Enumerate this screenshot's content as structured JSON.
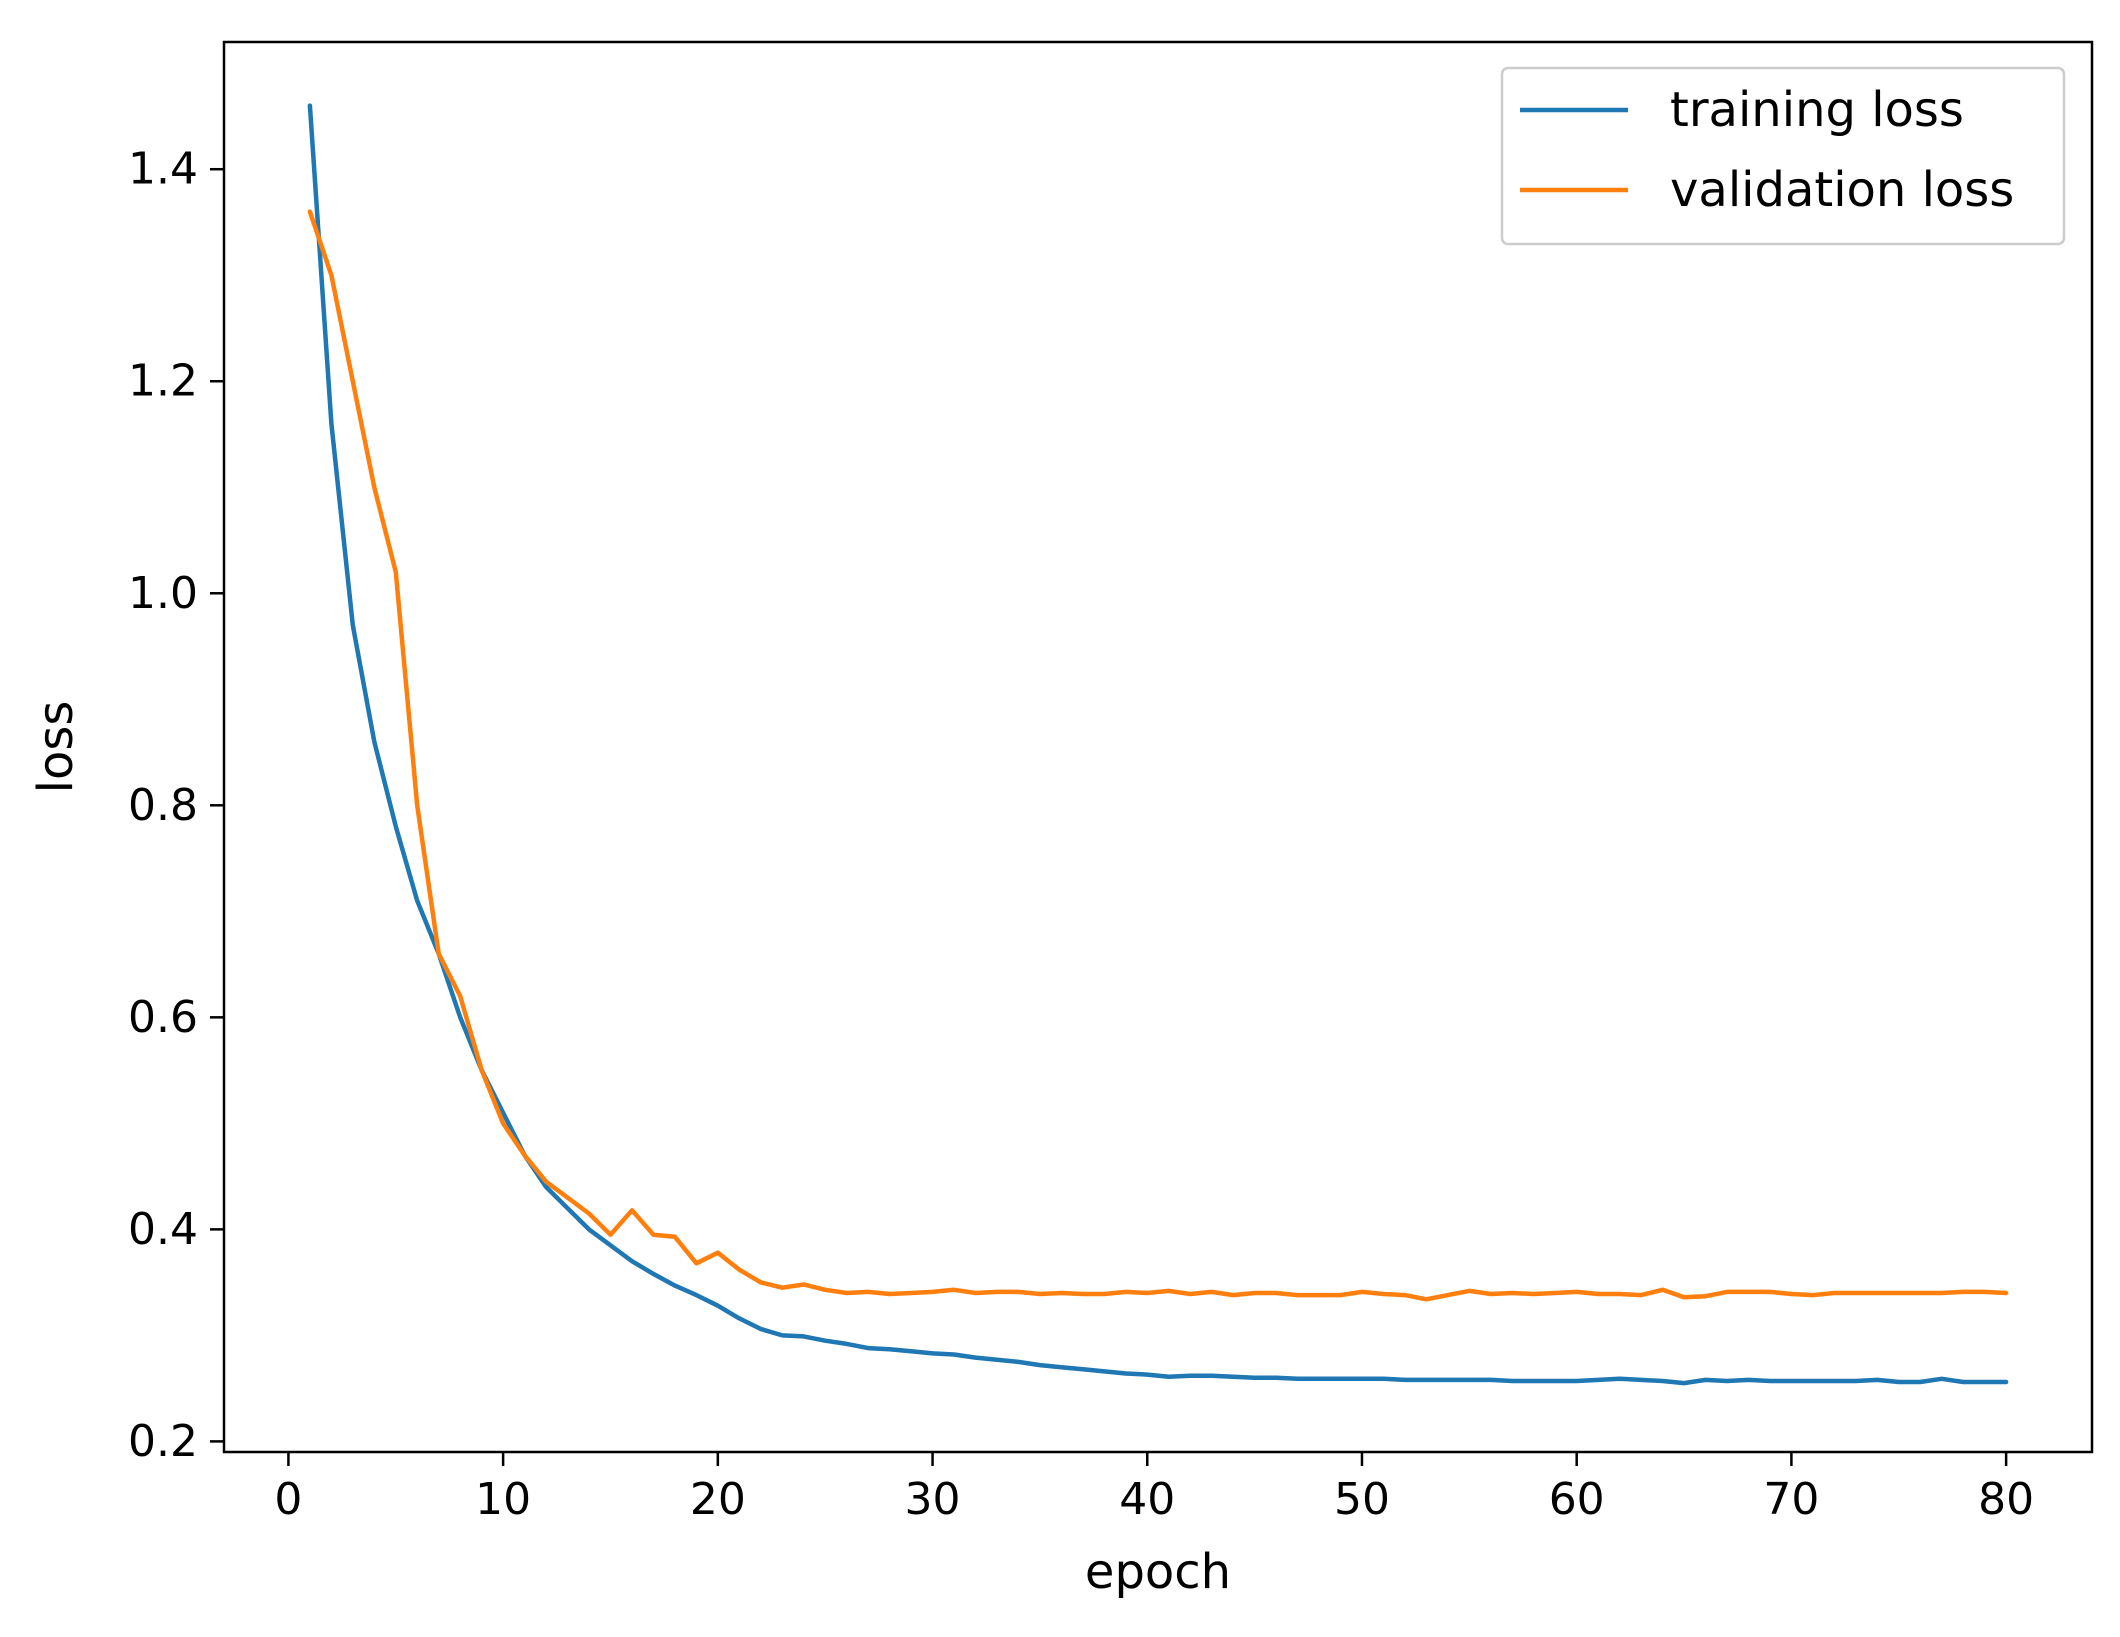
{
  "chart_data": {
    "type": "line",
    "title": "",
    "xlabel": "epoch",
    "ylabel": "loss",
    "xlim": [
      -3,
      84
    ],
    "ylim": [
      0.19,
      1.52
    ],
    "xticks": [
      0,
      10,
      20,
      30,
      40,
      50,
      60,
      70,
      80
    ],
    "yticks": [
      0.2,
      0.4,
      0.6,
      0.8,
      1.0,
      1.2,
      1.4
    ],
    "ytick_labels": [
      "0.2",
      "0.4",
      "0.6",
      "0.8",
      "1.0",
      "1.2",
      "1.4"
    ],
    "grid": false,
    "legend_position": "top-right",
    "x": [
      1,
      2,
      3,
      4,
      5,
      6,
      7,
      8,
      9,
      10,
      11,
      12,
      13,
      14,
      15,
      16,
      17,
      18,
      19,
      20,
      21,
      22,
      23,
      24,
      25,
      26,
      27,
      28,
      29,
      30,
      31,
      32,
      33,
      34,
      35,
      36,
      37,
      38,
      39,
      40,
      41,
      42,
      43,
      44,
      45,
      46,
      47,
      48,
      49,
      50,
      51,
      52,
      53,
      54,
      55,
      56,
      57,
      58,
      59,
      60,
      61,
      62,
      63,
      64,
      65,
      66,
      67,
      68,
      69,
      70,
      71,
      72,
      73,
      74,
      75,
      76,
      77,
      78,
      79,
      80
    ],
    "series": [
      {
        "name": "training loss",
        "color": "#1f77b4",
        "values": [
          1.46,
          1.16,
          0.97,
          0.86,
          0.78,
          0.71,
          0.66,
          0.6,
          0.55,
          0.51,
          0.47,
          0.44,
          0.42,
          0.4,
          0.385,
          0.37,
          0.358,
          0.347,
          0.338,
          0.328,
          0.316,
          0.306,
          0.3,
          0.299,
          0.295,
          0.292,
          0.288,
          0.287,
          0.285,
          0.283,
          0.282,
          0.279,
          0.277,
          0.275,
          0.272,
          0.27,
          0.268,
          0.266,
          0.264,
          0.263,
          0.261,
          0.262,
          0.262,
          0.261,
          0.26,
          0.26,
          0.259,
          0.259,
          0.259,
          0.259,
          0.259,
          0.258,
          0.258,
          0.258,
          0.258,
          0.258,
          0.257,
          0.257,
          0.257,
          0.257,
          0.258,
          0.259,
          0.258,
          0.257,
          0.255,
          0.258,
          0.257,
          0.258,
          0.257,
          0.257,
          0.257,
          0.257,
          0.257,
          0.258,
          0.256,
          0.256,
          0.259,
          0.256,
          0.256,
          0.256
        ]
      },
      {
        "name": "validation loss",
        "color": "#ff7f0e",
        "values": [
          1.36,
          1.3,
          1.2,
          1.1,
          1.02,
          0.8,
          0.66,
          0.62,
          0.55,
          0.5,
          0.47,
          0.445,
          0.43,
          0.415,
          0.395,
          0.418,
          0.395,
          0.393,
          0.368,
          0.378,
          0.362,
          0.35,
          0.345,
          0.348,
          0.343,
          0.34,
          0.341,
          0.339,
          0.34,
          0.341,
          0.343,
          0.34,
          0.341,
          0.341,
          0.339,
          0.34,
          0.339,
          0.339,
          0.341,
          0.34,
          0.342,
          0.339,
          0.341,
          0.338,
          0.34,
          0.34,
          0.338,
          0.338,
          0.338,
          0.341,
          0.339,
          0.338,
          0.334,
          0.338,
          0.342,
          0.339,
          0.34,
          0.339,
          0.34,
          0.341,
          0.339,
          0.339,
          0.338,
          0.343,
          0.336,
          0.337,
          0.341,
          0.341,
          0.341,
          0.339,
          0.338,
          0.34,
          0.34,
          0.34,
          0.34,
          0.34,
          0.34,
          0.341,
          0.341,
          0.34
        ]
      }
    ]
  }
}
